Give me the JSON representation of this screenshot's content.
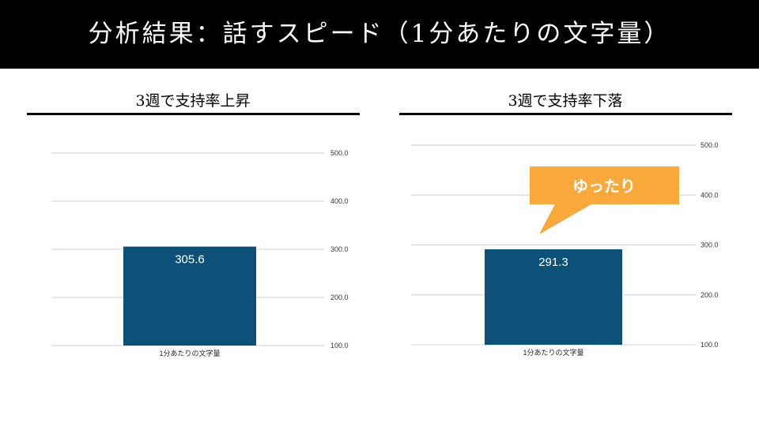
{
  "page": {
    "title": "分析結果：話すスピード（1分あたりの文字量）"
  },
  "colors": {
    "bar": "#0b5178",
    "callout": "#f9a83a",
    "title_bg": "#000000"
  },
  "chart_data": [
    {
      "type": "bar",
      "title": "3週で支持率上昇",
      "categories": [
        "1分あたりの文字量"
      ],
      "values": [
        305.6
      ],
      "data_labels": [
        "305.6"
      ],
      "ylim": [
        100,
        500
      ],
      "yticks": [
        "100.0",
        "200.0",
        "300.0",
        "400.0",
        "500.0"
      ],
      "y_axis_side": "right",
      "grid": true,
      "legend": "none"
    },
    {
      "type": "bar",
      "title": "3週で支持率下落",
      "categories": [
        "1分あたりの文字量"
      ],
      "values": [
        291.3
      ],
      "data_labels": [
        "291.3"
      ],
      "ylim": [
        100,
        500
      ],
      "yticks": [
        "100.0",
        "200.0",
        "300.0",
        "400.0",
        "500.0"
      ],
      "y_axis_side": "right",
      "grid": true,
      "legend": "none",
      "annotation": "ゆったり"
    }
  ]
}
